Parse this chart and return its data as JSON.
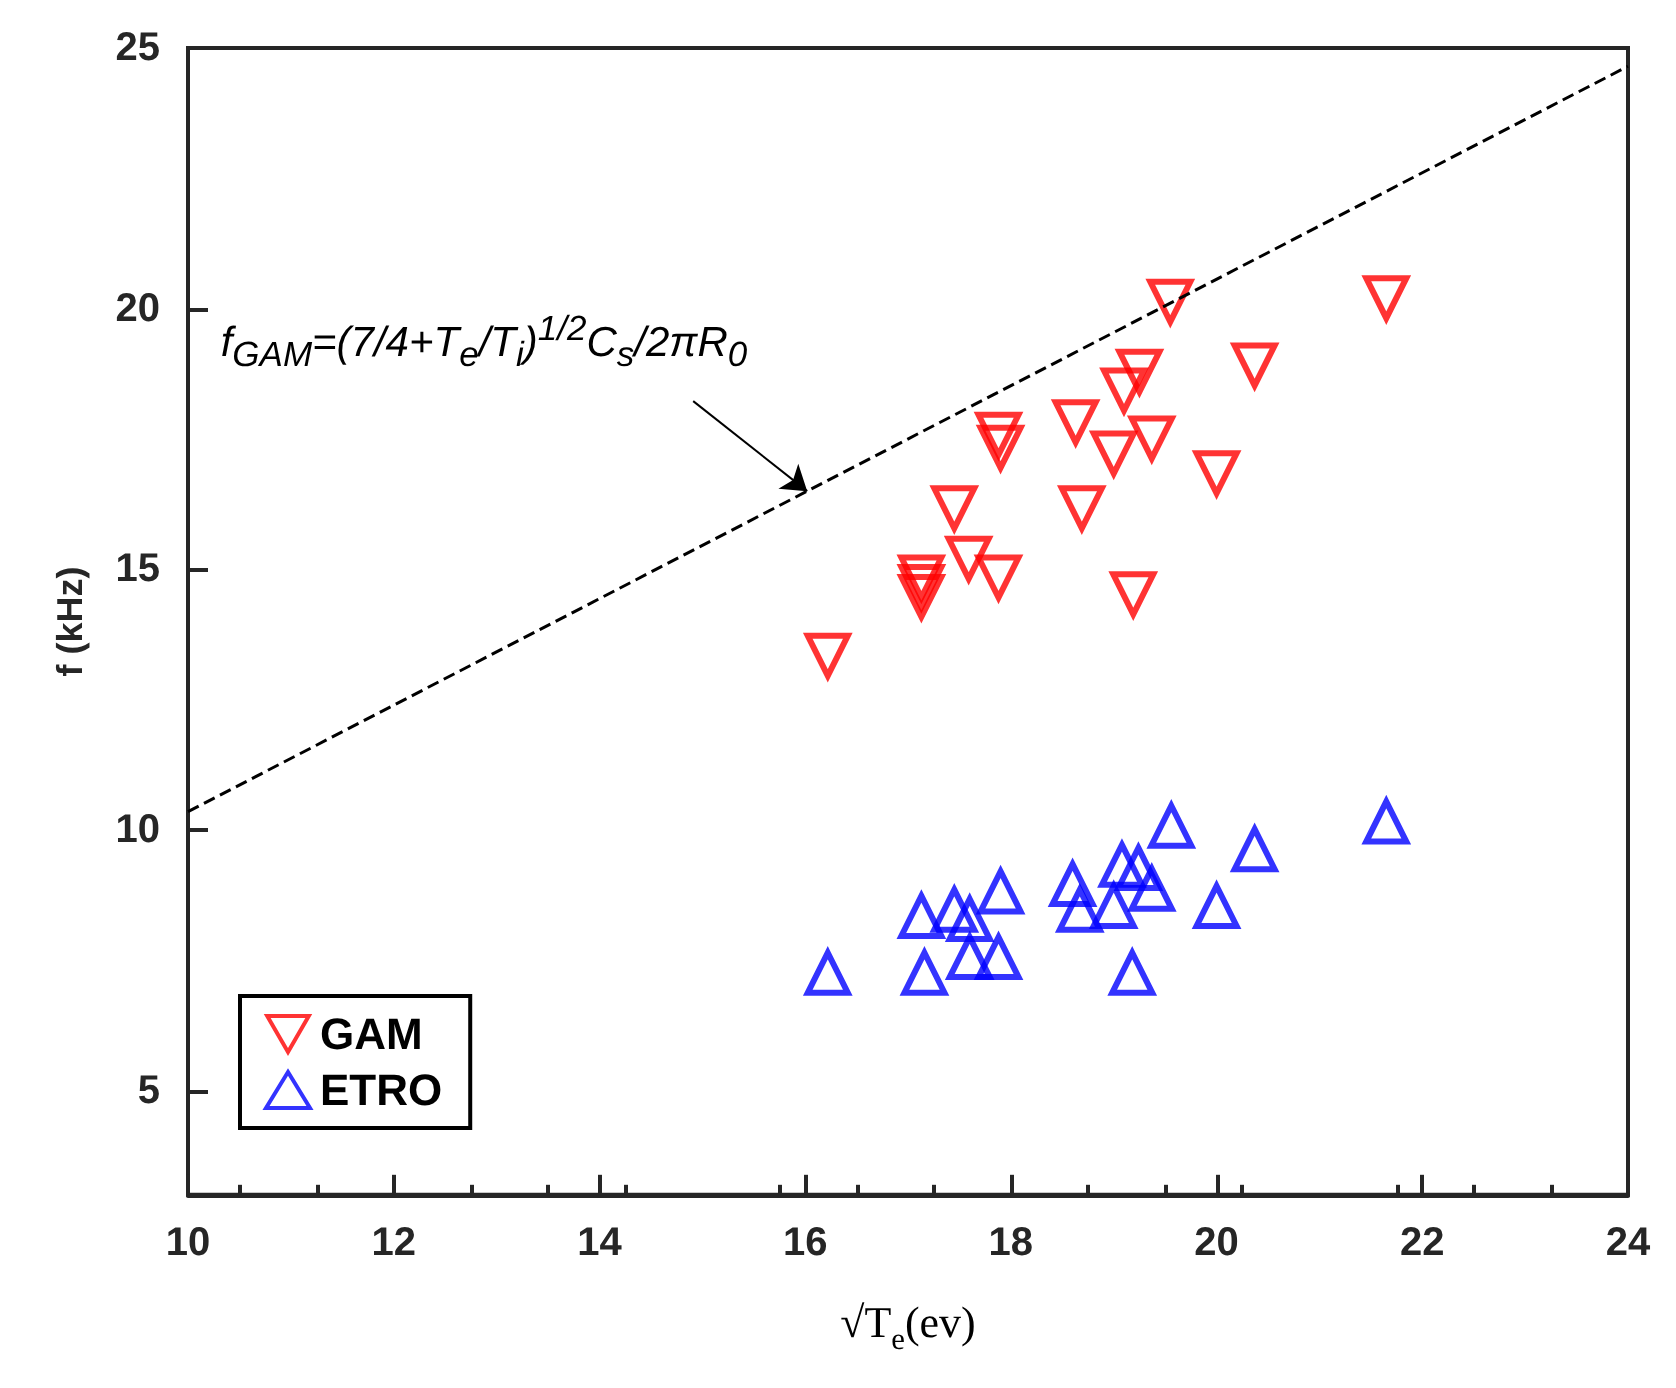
{
  "chart_data": {
    "type": "scatter",
    "xlabel": "√T$_{e}$(ev)",
    "ylabel": "f (kHz)",
    "xlim": [
      10,
      24
    ],
    "xticks": [
      10,
      12,
      14,
      16,
      18,
      20,
      22,
      24
    ],
    "ylim": [
      3,
      25
    ],
    "yticks": [
      5,
      10,
      15,
      20,
      25
    ],
    "grid": false,
    "legend": "bottom left",
    "series": [
      {
        "name": "GAM",
        "color": "#ff0000",
        "marker": "triangle_down",
        "x": [
          16.22,
          17.13,
          17.13,
          17.13,
          17.59,
          17.88,
          17.45,
          17.88,
          17.9,
          18.63,
          18.69,
          19.0,
          19.1,
          19.25,
          19.37,
          19.19,
          19.55,
          20.0,
          20.37,
          21.65
        ],
        "values": [
          13.34,
          14.84,
          14.66,
          14.47,
          15.2,
          14.84,
          16.17,
          17.58,
          17.33,
          17.82,
          16.17,
          17.22,
          18.43,
          18.79,
          17.51,
          14.52,
          20.13,
          16.84,
          18.91,
          20.2
        ]
      },
      {
        "name": "ETRO",
        "color": "#0000ff",
        "marker": "triangle",
        "x": [
          16.22,
          17.13,
          17.16,
          17.45,
          17.6,
          17.6,
          17.88,
          17.9,
          18.6,
          18.67,
          19.0,
          19.08,
          19.24,
          19.37,
          19.18,
          19.56,
          20.0,
          20.37,
          21.65
        ],
        "values": [
          7.26,
          8.35,
          7.26,
          8.47,
          8.29,
          7.56,
          7.56,
          8.82,
          8.96,
          8.47,
          8.54,
          9.33,
          9.27,
          8.87,
          7.26,
          10.08,
          8.54,
          9.63,
          10.16
        ]
      },
      {
        "type": "line",
        "color": "#000000",
        "line_style": "dashed",
        "marker": "none",
        "x": [
          10,
          24
        ],
        "values": [
          10.35,
          24.65
        ]
      }
    ],
    "annotations": [
      "f$_{GAM}$=(7/4+T$_{e}$/T$_{i}$)$^{1/2}$C$_{s}$/2πR$_{0}$"
    ]
  }
}
